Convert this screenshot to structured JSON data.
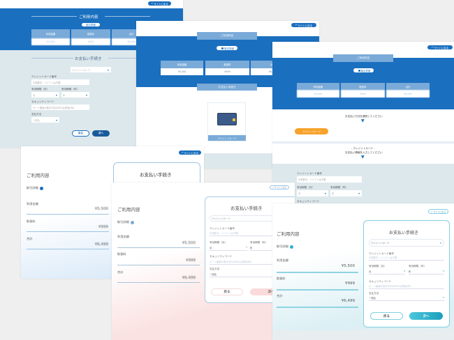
{
  "labels": {
    "back_to_site": "サイトに戻る",
    "usage_title": "ご利用内容",
    "payment_title": "お支払い手続き",
    "details": "取引詳細",
    "col_amount": "利用金額",
    "col_fee": "取扱料",
    "col_total": "合計",
    "method": "クレジットカード",
    "card_label": "クレジットカード番号",
    "card_placeholder": "半角数字、ハイフンは不要",
    "exp_month_label": "有効期限（月）",
    "exp_year_label": "有効期限（年）",
    "month": "月",
    "year": "年",
    "cvc_label": "セキュリティコード",
    "cvc_placeholder": "カード裏面の数字3桁(AMEXは表面4桁)",
    "pay_count_label": "支払方法",
    "pay_count": "一括払",
    "back": "戻る",
    "next": "次へ",
    "select_prompt": "お支払い方法を選択してください",
    "credit_heading": "- クレジットカード -",
    "enter_prompt": "お支払い情報を入力してください"
  },
  "values": {
    "amount": "¥5,500",
    "fee": "¥999",
    "total": "¥6,499"
  },
  "colors": {
    "blue": "#1a6fbf",
    "header_blue": "#7aaad8",
    "orange": "#f7a22b",
    "teal": "#2bb3cf",
    "pink": "#fadada"
  },
  "icons": [
    "back-arrow-icon",
    "info-icon",
    "chevron-down-icon",
    "credit-card-icon"
  ]
}
